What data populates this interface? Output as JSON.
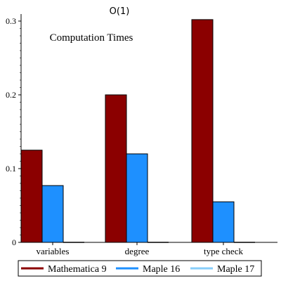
{
  "chart_data": {
    "type": "bar",
    "title": "O(1)",
    "annotation": "Computation Times",
    "categories": [
      "variables",
      "degree",
      "type check"
    ],
    "y_ticks": [
      "0",
      "0.1",
      "0.2",
      "0.3"
    ],
    "ylim": [
      0,
      0.3
    ],
    "grid": false,
    "legend_position": "bottom",
    "series": [
      {
        "name": "Mathematica 9",
        "color": "#8b0000",
        "values": [
          0.125,
          0.2,
          0.302
        ]
      },
      {
        "name": "Maple 16",
        "color": "#1e90ff",
        "values": [
          0.077,
          0.12,
          0.055
        ]
      },
      {
        "name": "Maple 17",
        "color": "#87cefa",
        "values": [
          0.0,
          0.0,
          0.0
        ]
      }
    ]
  }
}
